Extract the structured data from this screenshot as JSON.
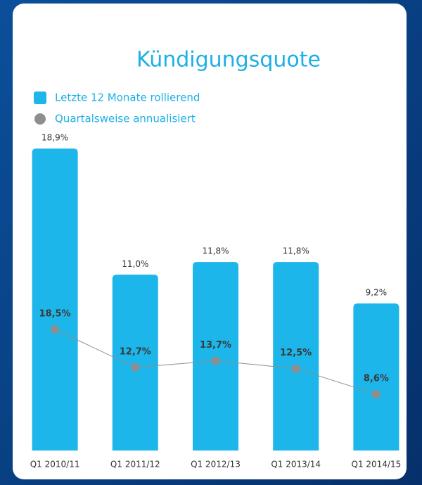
{
  "chart_data": {
    "type": "bar",
    "title": "Kündigungsquote",
    "categories": [
      "Q1 2010/11",
      "Q1 2011/12",
      "Q1 2012/13",
      "Q1 2013/14",
      "Q1 2014/15"
    ],
    "ylim": [
      0,
      20
    ],
    "y2lim": [
      0,
      48.8
    ],
    "legend": "top-left",
    "series": [
      {
        "name": "Letzte 12 Monate rollierend",
        "type": "bar",
        "color": "#1cb6ea",
        "values": [
          18.9,
          11.0,
          11.8,
          11.8,
          9.2
        ],
        "value_labels": [
          "18,9%",
          "11,0%",
          "11,8%",
          "11,8%",
          "9,2%"
        ]
      },
      {
        "name": "Quartalsweise annualisiert",
        "type": "line",
        "axis": "y2",
        "color": "#8e8e8e",
        "values": [
          18.5,
          12.7,
          13.7,
          12.5,
          8.6
        ],
        "value_labels": [
          "18,5%",
          "12,7%",
          "13,7%",
          "12,5%",
          "8,6%"
        ]
      }
    ]
  }
}
